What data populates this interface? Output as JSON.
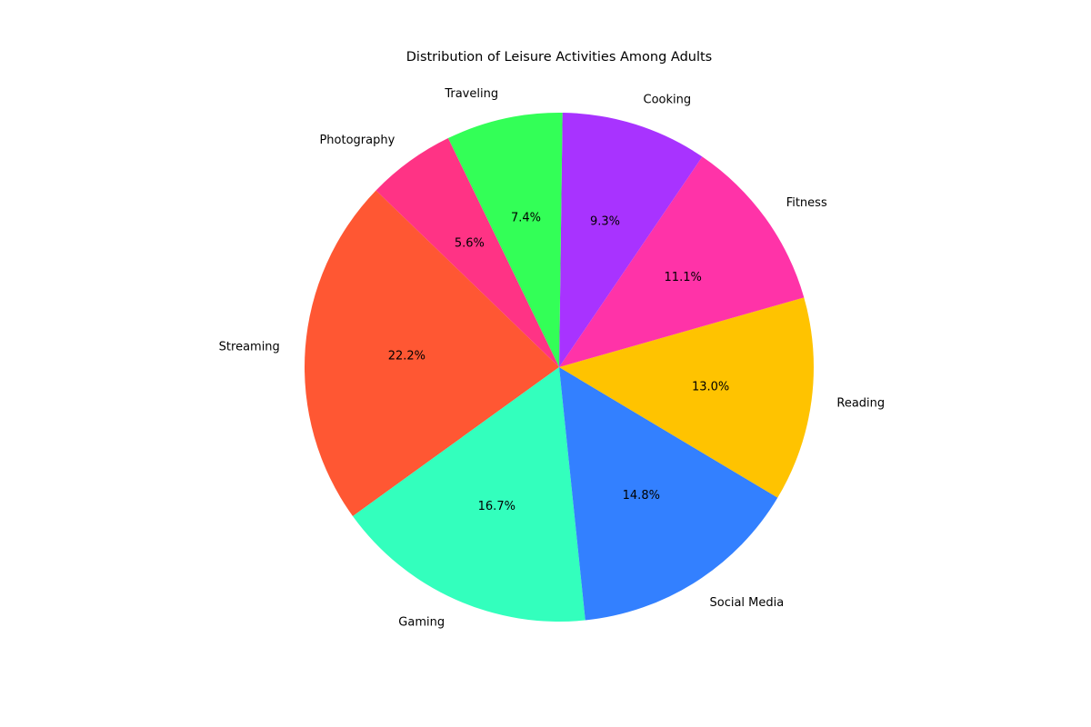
{
  "chart_data": {
    "type": "pie",
    "title": "Distribution of Leisure Activities Among Adults",
    "start_angle_deg": 136,
    "direction": "counterclockwise",
    "slices": [
      {
        "label": "Streaming",
        "value": 22.2,
        "pct_label": "22.2%",
        "color": "#FF5733"
      },
      {
        "label": "Gaming",
        "value": 16.7,
        "pct_label": "16.7%",
        "color": "#33FFBD"
      },
      {
        "label": "Social Media",
        "value": 14.8,
        "pct_label": "14.8%",
        "color": "#3380FF"
      },
      {
        "label": "Reading",
        "value": 13.0,
        "pct_label": "13.0%",
        "color": "#FFC300"
      },
      {
        "label": "Fitness",
        "value": 11.1,
        "pct_label": "11.1%",
        "color": "#FF33A8"
      },
      {
        "label": "Cooking",
        "value": 9.3,
        "pct_label": "9.3%",
        "color": "#A833FF"
      },
      {
        "label": "Traveling",
        "value": 7.4,
        "pct_label": "7.4%",
        "color": "#33FF57"
      },
      {
        "label": "Photography",
        "value": 5.6,
        "pct_label": "5.6%",
        "color": "#FF3385"
      }
    ]
  }
}
